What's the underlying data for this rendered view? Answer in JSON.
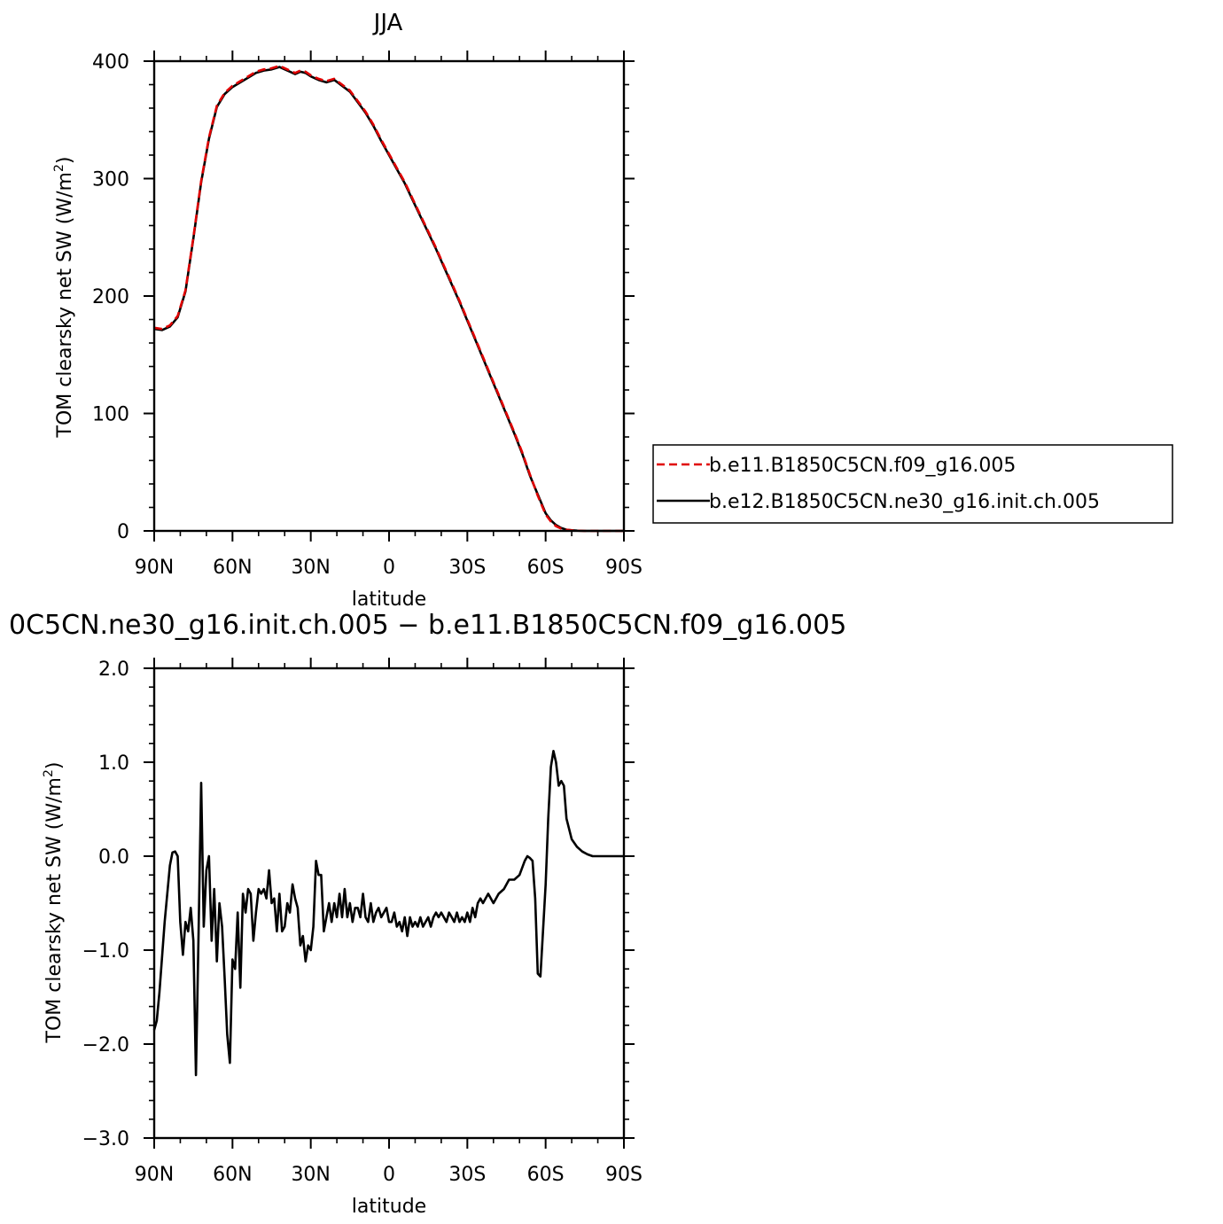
{
  "chart_data": [
    {
      "type": "line",
      "title": "JJA",
      "xlabel": "latitude",
      "ylabel": "TOM clearsky net SW (W/m²)",
      "ylabel_main": "TOM clearsky net SW (W/m",
      "ylabel_sup": "2",
      "ylabel_close": ")",
      "xlim": [
        90,
        -90
      ],
      "ylim": [
        0,
        400
      ],
      "xticks": [
        90,
        60,
        30,
        0,
        -30,
        -60,
        -90
      ],
      "xticklabels": [
        "90N",
        "60N",
        "30N",
        "0",
        "30S",
        "60S",
        "90S"
      ],
      "yticks": [
        0,
        100,
        200,
        300,
        400
      ],
      "yticklabels": [
        "0",
        "100",
        "200",
        "300",
        "400"
      ],
      "legend_position": "right",
      "series": [
        {
          "name": "b.e11.B1850C5CN.f09_g16.005",
          "color": "#e00000",
          "dash": "dashed",
          "x": [
            90,
            87,
            84,
            81,
            78,
            75,
            72,
            69,
            66,
            63,
            60,
            57,
            54,
            51,
            48,
            45,
            42,
            39,
            36,
            34,
            32,
            30,
            27,
            24,
            21,
            18,
            15,
            12,
            9,
            6,
            3,
            0,
            -3,
            -6,
            -9,
            -12,
            -15,
            -18,
            -21,
            -24,
            -27,
            -30,
            -33,
            -36,
            -39,
            -42,
            -45,
            -48,
            -51,
            -54,
            -57,
            -60,
            -62,
            -64,
            -66,
            -68,
            -70,
            -72,
            -75,
            -78,
            -81,
            -84,
            -87,
            -90
          ],
          "values": [
            173,
            172,
            175,
            183,
            205,
            250,
            298,
            335,
            362,
            373,
            379,
            383,
            387,
            391,
            393,
            394,
            396,
            393,
            390,
            392,
            391,
            388,
            385,
            383,
            385,
            380,
            375,
            366,
            357,
            346,
            333,
            321,
            309,
            297,
            283,
            269,
            255,
            241,
            226,
            211,
            196,
            180,
            164,
            148,
            132,
            116,
            100,
            84,
            67,
            48,
            30,
            14,
            8,
            4,
            2,
            1,
            0.5,
            0.2,
            0,
            0,
            0,
            0,
            0,
            0
          ]
        },
        {
          "name": "b.e12.B1850C5CN.ne30_g16.init.ch.005",
          "color": "#000000",
          "dash": "solid",
          "x": [
            90,
            87,
            84,
            81,
            78,
            75,
            72,
            69,
            66,
            63,
            60,
            57,
            54,
            51,
            48,
            45,
            42,
            39,
            36,
            34,
            32,
            30,
            27,
            24,
            21,
            18,
            15,
            12,
            9,
            6,
            3,
            0,
            -3,
            -6,
            -9,
            -12,
            -15,
            -18,
            -21,
            -24,
            -27,
            -30,
            -33,
            -36,
            -39,
            -42,
            -45,
            -48,
            -51,
            -54,
            -57,
            -60,
            -62,
            -64,
            -66,
            -68,
            -70,
            -72,
            -75,
            -78,
            -81,
            -84,
            -87,
            -90
          ],
          "values": [
            172,
            171,
            174,
            182,
            204,
            249,
            297,
            334,
            361,
            372,
            378,
            382,
            386,
            390,
            392,
            393,
            395,
            392,
            389,
            391,
            390,
            387,
            384,
            382,
            384,
            379,
            374,
            365,
            356,
            345,
            332,
            320,
            308,
            296,
            282,
            268,
            254,
            240,
            225,
            210,
            195,
            179,
            163,
            147,
            131,
            115,
            99,
            83,
            66,
            47,
            31,
            15,
            9,
            5,
            2.5,
            1,
            0.5,
            0.2,
            0,
            0,
            0,
            0,
            0,
            0
          ]
        }
      ]
    },
    {
      "type": "line",
      "title": "0C5CN.ne30_g16.init.ch.005 − b.e11.B1850C5CN.f09_g16.005",
      "xlabel": "latitude",
      "ylabel": "TOM clearsky net SW (W/m²)",
      "ylabel_main": "TOM clearsky net SW (W/m",
      "ylabel_sup": "2",
      "ylabel_close": ")",
      "xlim": [
        90,
        -90
      ],
      "ylim": [
        -3.0,
        2.0
      ],
      "xticks": [
        90,
        60,
        30,
        0,
        -30,
        -60,
        -90
      ],
      "xticklabels": [
        "90N",
        "60N",
        "30N",
        "0",
        "30S",
        "60S",
        "90S"
      ],
      "yticks": [
        -3.0,
        -2.0,
        -1.0,
        0.0,
        1.0,
        2.0
      ],
      "yticklabels": [
        "−3.0",
        "−2.0",
        "−1.0",
        "0.0",
        "1.0",
        "2.0"
      ],
      "series": [
        {
          "color": "#000000",
          "dash": "solid",
          "x": [
            90,
            89,
            88,
            86,
            84,
            83,
            82,
            81,
            80,
            79,
            78,
            77,
            76,
            75,
            74,
            73,
            72,
            71,
            70,
            69,
            68,
            67,
            66,
            65,
            64,
            63,
            62,
            61,
            60,
            59,
            58,
            57,
            56,
            55,
            54,
            53,
            52,
            51,
            50,
            49,
            48,
            47,
            46,
            45,
            44,
            43,
            42,
            41,
            40,
            39,
            38,
            37,
            36,
            35,
            34,
            33,
            32,
            31,
            30,
            29,
            28,
            27,
            26,
            25,
            24,
            23,
            22,
            21,
            20,
            19,
            18,
            17,
            16,
            15,
            14,
            13,
            12,
            11,
            10,
            9,
            8,
            7,
            6,
            5,
            4,
            3,
            2,
            1,
            0,
            -1,
            -2,
            -3,
            -4,
            -5,
            -6,
            -7,
            -8,
            -9,
            -10,
            -11,
            -12,
            -13,
            -14,
            -15,
            -16,
            -17,
            -18,
            -19,
            -20,
            -21,
            -22,
            -23,
            -24,
            -25,
            -26,
            -27,
            -28,
            -29,
            -30,
            -31,
            -32,
            -33,
            -34,
            -35,
            -36,
            -37,
            -38,
            -40,
            -42,
            -44,
            -46,
            -48,
            -50,
            -52,
            -53,
            -54,
            -55,
            -56,
            -57,
            -58,
            -59,
            -60,
            -61,
            -62,
            -63,
            -64,
            -65,
            -66,
            -67,
            -68,
            -70,
            -72,
            -74,
            -76,
            -78,
            -80,
            -84,
            -88,
            -90
          ],
          "values": [
            -1.85,
            -1.75,
            -1.45,
            -0.7,
            -0.1,
            0.04,
            0.05,
            0.0,
            -0.7,
            -1.05,
            -0.7,
            -0.8,
            -0.55,
            -0.9,
            -2.33,
            -0.8,
            0.78,
            -0.75,
            -0.15,
            0.0,
            -0.9,
            -0.35,
            -1.12,
            -0.5,
            -0.75,
            -1.3,
            -1.9,
            -2.2,
            -1.1,
            -1.2,
            -0.6,
            -1.4,
            -0.4,
            -0.6,
            -0.35,
            -0.4,
            -0.9,
            -0.6,
            -0.35,
            -0.4,
            -0.35,
            -0.45,
            -0.15,
            -0.5,
            -0.45,
            -0.8,
            -0.4,
            -0.8,
            -0.75,
            -0.5,
            -0.6,
            -0.3,
            -0.45,
            -0.55,
            -0.95,
            -0.85,
            -1.12,
            -0.95,
            -1.0,
            -0.75,
            -0.05,
            -0.2,
            -0.2,
            -0.8,
            -0.65,
            -0.5,
            -0.7,
            -0.5,
            -0.65,
            -0.4,
            -0.65,
            -0.35,
            -0.65,
            -0.5,
            -0.7,
            -0.55,
            -0.55,
            -0.65,
            -0.4,
            -0.65,
            -0.7,
            -0.5,
            -0.7,
            -0.6,
            -0.55,
            -0.65,
            -0.6,
            -0.55,
            -0.7,
            -0.7,
            -0.6,
            -0.75,
            -0.7,
            -0.8,
            -0.65,
            -0.85,
            -0.65,
            -0.75,
            -0.7,
            -0.75,
            -0.65,
            -0.75,
            -0.7,
            -0.65,
            -0.75,
            -0.65,
            -0.6,
            -0.65,
            -0.6,
            -0.65,
            -0.7,
            -0.6,
            -0.65,
            -0.7,
            -0.6,
            -0.7,
            -0.65,
            -0.7,
            -0.6,
            -0.7,
            -0.55,
            -0.65,
            -0.5,
            -0.45,
            -0.5,
            -0.45,
            -0.4,
            -0.5,
            -0.4,
            -0.35,
            -0.25,
            -0.25,
            -0.2,
            -0.05,
            0.0,
            -0.02,
            -0.05,
            -0.45,
            -1.25,
            -1.28,
            -0.8,
            -0.3,
            0.4,
            0.95,
            1.12,
            1.0,
            0.75,
            0.8,
            0.75,
            0.4,
            0.18,
            0.1,
            0.05,
            0.02,
            0.0,
            0.0,
            0.0,
            0.0,
            0.0
          ]
        }
      ]
    }
  ]
}
